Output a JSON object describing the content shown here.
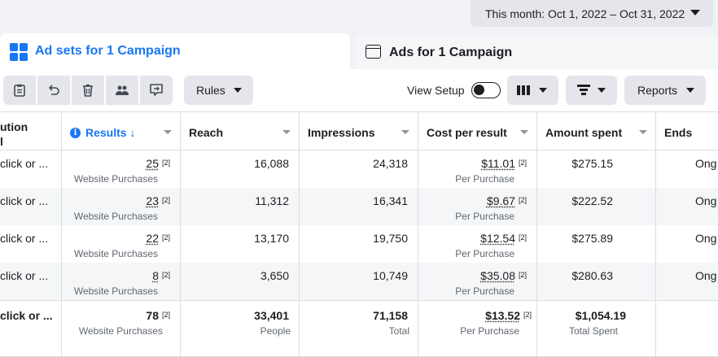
{
  "date_range": {
    "label": "This month: Oct 1, 2022 – Oct 31, 2022"
  },
  "tabs": [
    {
      "label": "Ad sets for 1 Campaign",
      "active": true
    },
    {
      "label": "Ads for 1 Campaign",
      "active": false
    }
  ],
  "toolbar": {
    "icons": [
      "duplicate-icon",
      "undo-icon",
      "delete-icon",
      "ab-test-icon",
      "export-icon"
    ],
    "rules_label": "Rules",
    "view_setup_label": "View Setup",
    "view_setup_on": false,
    "columns_icon": "columns-icon",
    "breakdown_icon": "breakdown-icon",
    "reports_label": "Reports"
  },
  "colors": {
    "accent": "#1877f2",
    "button_bg": "#e4e6eb",
    "border": "#dadde1"
  },
  "table": {
    "headers": {
      "attribution_line1": "ution",
      "attribution_line2": "l",
      "results": "Results ↓",
      "reach": "Reach",
      "impressions": "Impressions",
      "cost_per_result": "Cost per result",
      "amount_spent": "Amount spent",
      "ends": "Ends"
    },
    "rows": [
      {
        "attribution": "click or ...",
        "results": "25",
        "results_fn": "[2]",
        "results_sub": "Website Purchases",
        "reach": "16,088",
        "impressions": "24,318",
        "cost": "$11.01",
        "cost_fn": "[2]",
        "cost_sub": "Per Purchase",
        "spent": "$275.15",
        "ends": "Ong"
      },
      {
        "attribution": "click or ...",
        "results": "23",
        "results_fn": "[2]",
        "results_sub": "Website Purchases",
        "reach": "11,312",
        "impressions": "16,341",
        "cost": "$9.67",
        "cost_fn": "[2]",
        "cost_sub": "Per Purchase",
        "spent": "$222.52",
        "ends": "Ong"
      },
      {
        "attribution": "click or ...",
        "results": "22",
        "results_fn": "[2]",
        "results_sub": "Website Purchases",
        "reach": "13,170",
        "impressions": "19,750",
        "cost": "$12.54",
        "cost_fn": "[2]",
        "cost_sub": "Per Purchase",
        "spent": "$275.89",
        "ends": "Ong"
      },
      {
        "attribution": "click or ...",
        "results": "8",
        "results_fn": "[2]",
        "results_sub": "Website Purchases",
        "reach": "3,650",
        "impressions": "10,749",
        "cost": "$35.08",
        "cost_fn": "[2]",
        "cost_sub": "Per Purchase",
        "spent": "$280.63",
        "ends": "Ong"
      }
    ],
    "totals": {
      "attribution": "click or ...",
      "results": "78",
      "results_fn": "[2]",
      "results_sub": "Website Purchases",
      "reach": "33,401",
      "reach_sub": "People",
      "impressions": "71,158",
      "impressions_sub": "Total",
      "cost": "$13.52",
      "cost_fn": "[2]",
      "cost_sub": "Per Purchase",
      "spent": "$1,054.19",
      "spent_sub": "Total Spent"
    }
  }
}
